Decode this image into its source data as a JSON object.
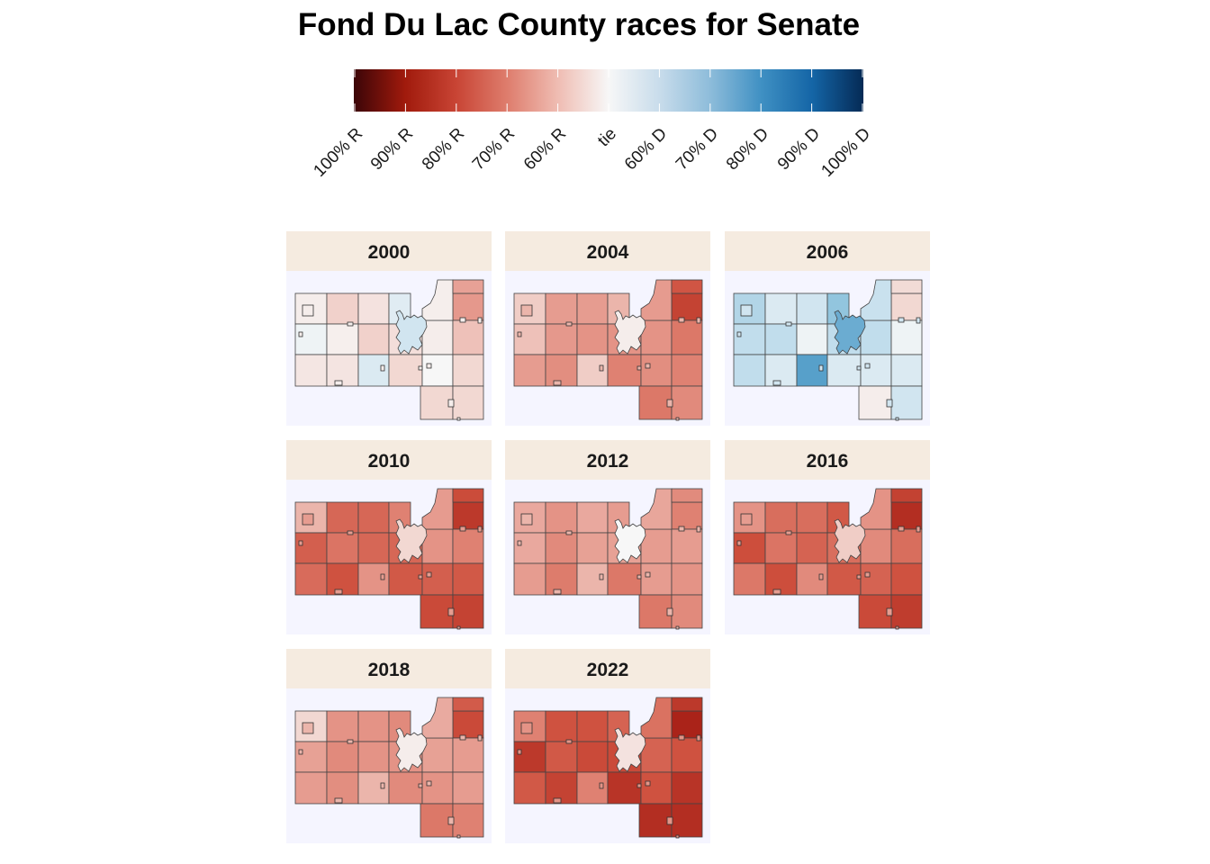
{
  "title": "Fond Du Lac County races for Senate",
  "legend": {
    "ticks": [
      "100% R",
      "90% R",
      "80% R",
      "70% R",
      "60% R",
      "tie",
      "60% D",
      "70% D",
      "80% D",
      "90% D",
      "100% D"
    ],
    "scale": "diverging red (R) to blue (D)",
    "colors": {
      "R100": "#67000d",
      "R90": "#a50f15",
      "R80": "#d6604d",
      "tie": "#f7f7f7",
      "D80": "#2166ac",
      "D100": "#053061"
    }
  },
  "panels": [
    {
      "year": "2000",
      "shades": [
        0.05,
        0.18,
        0.1,
        -0.12,
        -0.05,
        0.04,
        0.18,
        0.12,
        0.08,
        0.09,
        -0.15,
        0.15,
        0.05,
        0.42,
        0.25,
        0.0,
        0.15,
        0.15,
        0.15
      ],
      "city": -0.2,
      "towns": 0.05
    },
    {
      "year": "2004",
      "shades": [
        0.2,
        0.4,
        0.4,
        0.3,
        0.25,
        0.42,
        0.45,
        0.45,
        0.4,
        0.48,
        0.2,
        0.55,
        0.45,
        0.85,
        0.6,
        0.48,
        0.55,
        0.6,
        0.5
      ],
      "city": 0.05,
      "towns": 0.3
    },
    {
      "year": "2006",
      "shades": [
        -0.3,
        -0.15,
        -0.2,
        -0.4,
        -0.25,
        -0.25,
        -0.05,
        -0.25,
        -0.25,
        -0.15,
        -0.55,
        -0.15,
        -0.25,
        0.15,
        -0.05,
        -0.15,
        -0.15,
        0.05,
        -0.2
      ],
      "city": -0.5,
      "towns": -0.2
    },
    {
      "year": "2010",
      "shades": [
        0.3,
        0.68,
        0.68,
        0.55,
        0.72,
        0.62,
        0.68,
        0.68,
        0.66,
        0.78,
        0.45,
        0.75,
        0.45,
        0.9,
        0.55,
        0.72,
        0.75,
        0.82,
        0.85
      ],
      "city": 0.15,
      "towns": 0.4
    },
    {
      "year": "2012",
      "shades": [
        0.35,
        0.45,
        0.35,
        0.4,
        0.35,
        0.5,
        0.38,
        0.38,
        0.4,
        0.58,
        0.3,
        0.6,
        0.4,
        0.55,
        0.4,
        0.4,
        0.45,
        0.6,
        0.5
      ],
      "city": 0.0,
      "towns": 0.3
    },
    {
      "year": "2016",
      "shades": [
        0.45,
        0.65,
        0.65,
        0.75,
        0.8,
        0.62,
        0.7,
        0.65,
        0.6,
        0.8,
        0.5,
        0.75,
        0.5,
        0.95,
        0.65,
        0.7,
        0.78,
        0.82,
        0.88
      ],
      "city": 0.2,
      "towns": 0.4
    },
    {
      "year": "2018",
      "shades": [
        0.15,
        0.45,
        0.45,
        0.5,
        0.38,
        0.5,
        0.45,
        0.45,
        0.4,
        0.48,
        0.3,
        0.5,
        0.38,
        0.82,
        0.4,
        0.45,
        0.4,
        0.6,
        0.55
      ],
      "city": 0.05,
      "towns": 0.3
    },
    {
      "year": "2022",
      "shades": [
        0.55,
        0.78,
        0.78,
        0.7,
        0.9,
        0.75,
        0.82,
        0.82,
        0.75,
        0.85,
        0.55,
        0.92,
        0.7,
        1.0,
        0.78,
        0.78,
        0.92,
        0.95,
        0.95
      ],
      "city": 0.1,
      "towns": 0.45
    }
  ]
}
